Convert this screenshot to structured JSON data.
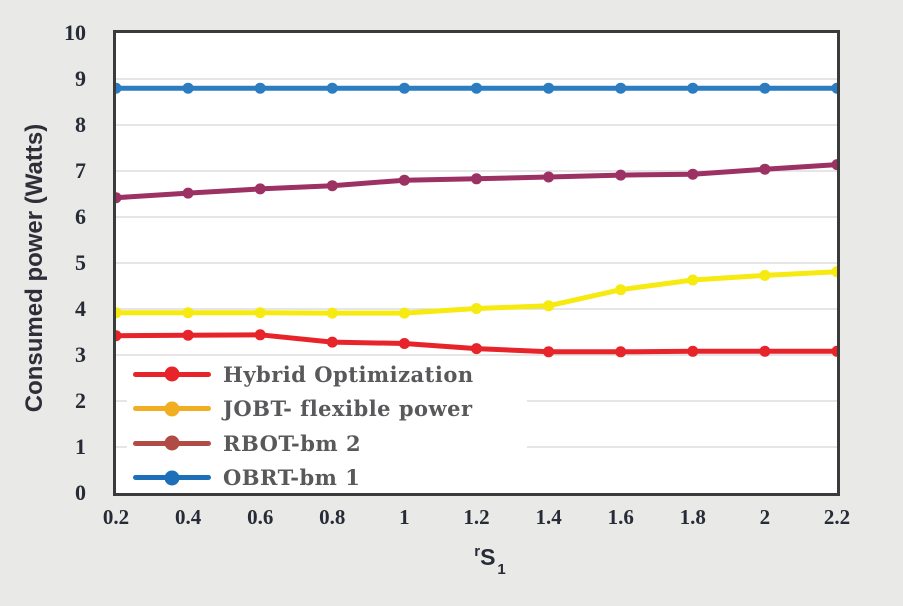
{
  "chart_data": {
    "type": "line",
    "title": "",
    "ylabel": "Consumed power (Watts)",
    "xlabel": {
      "prefix": "r",
      "main": "S",
      "subscript": "1"
    },
    "ylim": [
      0,
      10
    ],
    "xlim": [
      0.2,
      2.2
    ],
    "yticks": [
      0,
      1,
      2,
      3,
      4,
      5,
      6,
      7,
      8,
      9,
      10
    ],
    "grid_yticks": [
      1,
      2,
      3,
      4,
      5,
      6,
      7,
      8,
      9
    ],
    "grid": "horizontal",
    "legend_position": "bottom-left",
    "x": [
      0.2,
      0.4,
      0.6,
      0.8,
      1.0,
      1.2,
      1.4,
      1.6,
      1.8,
      2.0,
      2.2
    ],
    "xtick_labels": [
      "0.2",
      "0.4",
      "0.6",
      "0.8",
      "1",
      "1.2",
      "1.4",
      "1.6",
      "1.8",
      "2",
      "2.2"
    ],
    "series": [
      {
        "name": "Hybrid Optimization",
        "line_color": "#e8242b",
        "legend_color": "#e8242b",
        "values": [
          3.42,
          3.43,
          3.44,
          3.28,
          3.25,
          3.14,
          3.07,
          3.07,
          3.08,
          3.08,
          3.08
        ]
      },
      {
        "name": "JOBT- flexible power",
        "line_color": "#f6ea10",
        "legend_color": "#f1ae20",
        "values": [
          3.92,
          3.92,
          3.92,
          3.91,
          3.91,
          4.01,
          4.07,
          4.42,
          4.63,
          4.73,
          4.81
        ]
      },
      {
        "name": "RBOT-bm 2",
        "line_color": "#9c3164",
        "legend_color": "#b14b45",
        "values": [
          6.42,
          6.52,
          6.61,
          6.68,
          6.8,
          6.83,
          6.87,
          6.91,
          6.93,
          7.04,
          7.14
        ]
      },
      {
        "name": "OBRT-bm 1",
        "line_color": "#2b7cc0",
        "legend_color": "#1d70b8",
        "values": [
          8.8,
          8.8,
          8.8,
          8.8,
          8.8,
          8.8,
          8.8,
          8.8,
          8.8,
          8.8,
          8.8
        ]
      }
    ],
    "colors": {
      "background": "#e9e9e7",
      "plot_background": "#ffffff",
      "plot_border": "#3b3b3b",
      "grid": "#d8d8d8",
      "tick_text": "#262b36",
      "legend_text": "#59595b"
    }
  }
}
